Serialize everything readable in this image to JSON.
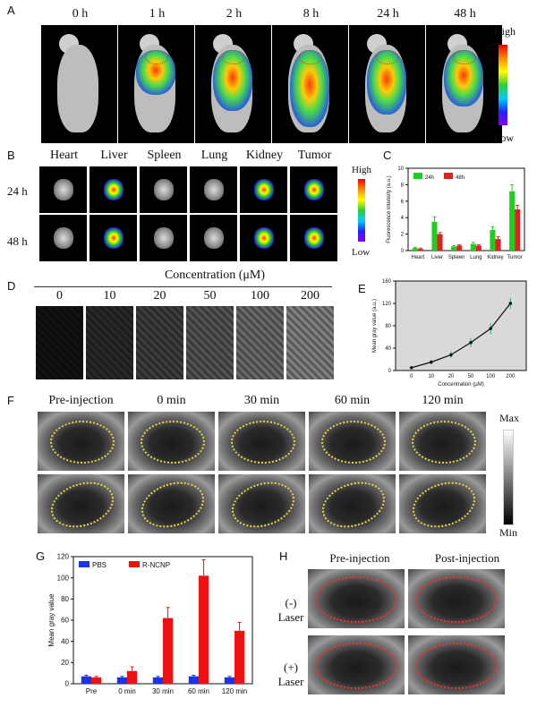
{
  "panels": {
    "a": "A",
    "b": "B",
    "c": "C",
    "d": "D",
    "e": "E",
    "f": "F",
    "g": "G",
    "h": "H"
  },
  "panel_a": {
    "times": [
      "0 h",
      "1 h",
      "2 h",
      "8 h",
      "24 h",
      "48 h"
    ],
    "colorbar": {
      "high": "High",
      "low": "Low"
    }
  },
  "panel_b": {
    "organs": [
      "Heart",
      "Liver",
      "Spleen",
      "Lung",
      "Kidney",
      "Tumor"
    ],
    "rows": [
      "24 h",
      "48 h"
    ],
    "colorbar": {
      "high": "High",
      "low": "Low"
    }
  },
  "panel_d": {
    "title": "Concentration (μM)",
    "concentrations": [
      "0",
      "10",
      "20",
      "50",
      "100",
      "200"
    ]
  },
  "panel_f": {
    "times": [
      "Pre-injection",
      "0 min",
      "30 min",
      "60 min",
      "120 min"
    ],
    "colorbar": {
      "max": "Max",
      "min": "Min"
    }
  },
  "panel_h": {
    "columns": [
      "Pre-injection",
      "Post-injection"
    ],
    "rows": [
      [
        "(-)",
        "Laser"
      ],
      [
        "(+)",
        "Laser"
      ]
    ]
  },
  "chart_data": [
    {
      "id": "C",
      "type": "bar",
      "categories": [
        "Heart",
        "Liver",
        "Spleen",
        "Lung",
        "Kidney",
        "Tumor"
      ],
      "series": [
        {
          "name": "24h",
          "color": "#22cc22",
          "values": [
            0.3,
            3.5,
            0.5,
            0.8,
            2.5,
            7.2
          ],
          "errors": [
            0.1,
            0.6,
            0.1,
            0.2,
            0.4,
            0.8
          ]
        },
        {
          "name": "48h",
          "color": "#dd2222",
          "values": [
            0.2,
            2.0,
            0.6,
            0.6,
            1.4,
            5.0
          ],
          "errors": [
            0.1,
            0.2,
            0.1,
            0.1,
            0.3,
            0.5
          ]
        }
      ],
      "ylabel": "Fluorescence intensity (a.u.)",
      "ylim": [
        0,
        10
      ],
      "yticks": [
        0,
        2,
        4,
        6,
        8,
        10
      ]
    },
    {
      "id": "E",
      "type": "line",
      "x": [
        "0",
        "10",
        "20",
        "50",
        "100",
        "200"
      ],
      "values": [
        5,
        15,
        28,
        50,
        75,
        120
      ],
      "errors": [
        2,
        4,
        6,
        8,
        10,
        10
      ],
      "xlabel": "Concentration (μM)",
      "ylabel": "Mean gray value (a.u.)",
      "ylim": [
        0,
        160
      ],
      "yticks": [
        0,
        40,
        80,
        120,
        160
      ],
      "color": "#111111"
    },
    {
      "id": "G",
      "type": "bar",
      "categories": [
        "Pre",
        "0 min",
        "30 min",
        "60 min",
        "120 min"
      ],
      "series": [
        {
          "name": "PBS",
          "color": "#1a33ee",
          "values": [
            7,
            6,
            6,
            7,
            6
          ],
          "errors": [
            1,
            1,
            1,
            1,
            1
          ]
        },
        {
          "name": "R-NCNP",
          "color": "#ee1111",
          "values": [
            6,
            12,
            62,
            102,
            50
          ],
          "errors": [
            1,
            4,
            10,
            15,
            8
          ]
        }
      ],
      "ylabel": "Mean gray value",
      "ylim": [
        0,
        120
      ],
      "yticks": [
        0,
        20,
        40,
        60,
        80,
        100,
        120
      ]
    }
  ]
}
